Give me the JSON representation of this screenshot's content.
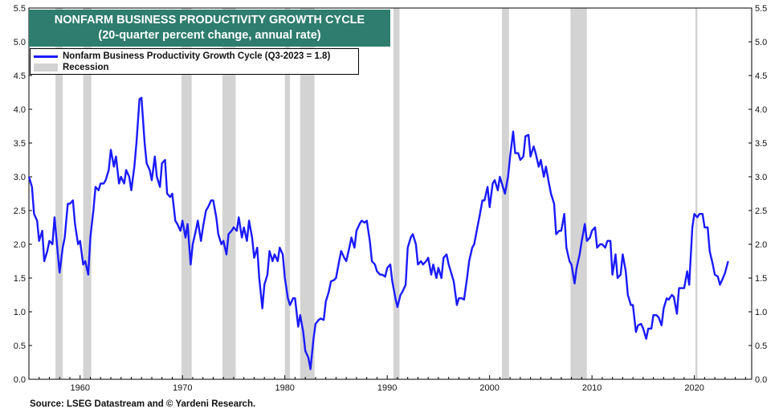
{
  "title_line1": "NONFARM BUSINESS PRODUCTIVITY GROWTH CYCLE",
  "title_line2": "(20-quarter percent change, annual rate)",
  "legend": {
    "series_label": "Nonfarm Business Productivity Growth Cycle (Q3-2023 = 1.8)",
    "recession_label": "Recession"
  },
  "source": "Source: LSEG Datastream and © Yardeni Research.",
  "colors": {
    "line": "#1a1aff",
    "recession": "#d3d3d3",
    "title_bg": "#2e7d6f"
  },
  "chart_data": {
    "type": "line",
    "title": "NONFARM BUSINESS PRODUCTIVITY GROWTH CYCLE",
    "subtitle": "(20-quarter percent change, annual rate)",
    "xlim": [
      1955,
      2025.6
    ],
    "ylim": [
      0.0,
      5.5
    ],
    "x_ticks": [
      1960,
      1970,
      1980,
      1990,
      2000,
      2010,
      2020
    ],
    "y_ticks": [
      0.0,
      0.5,
      1.0,
      1.5,
      2.0,
      2.5,
      3.0,
      3.5,
      4.0,
      4.5,
      5.0,
      5.5
    ],
    "y_tick_labels": [
      "0.0",
      "0.5",
      "1.0",
      "1.5",
      "2.0",
      "2.5",
      "3.0",
      "3.5",
      "4.0",
      "4.5",
      "5.0",
      "5.5"
    ],
    "recessions": [
      [
        1957.6,
        1958.3
      ],
      [
        1960.3,
        1961.1
      ],
      [
        1969.9,
        1970.9
      ],
      [
        1973.9,
        1975.2
      ],
      [
        1980.0,
        1980.5
      ],
      [
        1981.5,
        1982.9
      ],
      [
        1990.6,
        1991.2
      ],
      [
        2001.2,
        2001.9
      ],
      [
        2007.9,
        2009.5
      ],
      [
        2020.1,
        2020.3
      ]
    ],
    "grid": false,
    "series": [
      {
        "name": "Nonfarm Business Productivity Growth Cycle (Q3-2023 = 1.8)",
        "points": [
          [
            1955.0,
            3.0
          ],
          [
            1955.3,
            2.85
          ],
          [
            1955.5,
            2.45
          ],
          [
            1955.8,
            2.35
          ],
          [
            1956.0,
            2.05
          ],
          [
            1956.3,
            2.2
          ],
          [
            1956.5,
            1.75
          ],
          [
            1956.8,
            1.9
          ],
          [
            1957.0,
            2.05
          ],
          [
            1957.3,
            2.0
          ],
          [
            1957.5,
            2.4
          ],
          [
            1957.8,
            1.9
          ],
          [
            1958.0,
            1.58
          ],
          [
            1958.3,
            1.95
          ],
          [
            1958.5,
            2.1
          ],
          [
            1958.8,
            2.6
          ],
          [
            1959.0,
            2.6
          ],
          [
            1959.3,
            2.65
          ],
          [
            1959.5,
            2.3
          ],
          [
            1959.8,
            2.0
          ],
          [
            1960.0,
            2.05
          ],
          [
            1960.3,
            1.7
          ],
          [
            1960.5,
            1.75
          ],
          [
            1960.8,
            1.55
          ],
          [
            1961.0,
            2.1
          ],
          [
            1961.3,
            2.5
          ],
          [
            1961.5,
            2.85
          ],
          [
            1961.8,
            2.8
          ],
          [
            1962.0,
            2.9
          ],
          [
            1962.3,
            2.9
          ],
          [
            1962.5,
            2.95
          ],
          [
            1962.8,
            3.1
          ],
          [
            1963.0,
            3.4
          ],
          [
            1963.3,
            3.15
          ],
          [
            1963.5,
            3.3
          ],
          [
            1963.8,
            2.9
          ],
          [
            1964.0,
            3.0
          ],
          [
            1964.3,
            2.9
          ],
          [
            1964.5,
            3.1
          ],
          [
            1964.8,
            3.0
          ],
          [
            1965.0,
            2.8
          ],
          [
            1965.3,
            3.15
          ],
          [
            1965.5,
            3.5
          ],
          [
            1965.8,
            4.15
          ],
          [
            1966.0,
            4.17
          ],
          [
            1966.3,
            3.5
          ],
          [
            1966.5,
            3.2
          ],
          [
            1966.8,
            3.1
          ],
          [
            1967.0,
            2.95
          ],
          [
            1967.3,
            3.3
          ],
          [
            1967.5,
            3.0
          ],
          [
            1967.8,
            2.85
          ],
          [
            1968.0,
            3.2
          ],
          [
            1968.3,
            3.25
          ],
          [
            1968.5,
            2.75
          ],
          [
            1968.8,
            2.7
          ],
          [
            1969.0,
            2.75
          ],
          [
            1969.3,
            2.35
          ],
          [
            1969.5,
            2.3
          ],
          [
            1969.8,
            2.2
          ],
          [
            1970.0,
            2.35
          ],
          [
            1970.3,
            2.1
          ],
          [
            1970.5,
            2.3
          ],
          [
            1970.8,
            1.7
          ],
          [
            1971.0,
            2.0
          ],
          [
            1971.3,
            2.2
          ],
          [
            1971.5,
            2.35
          ],
          [
            1971.8,
            2.05
          ],
          [
            1972.0,
            2.25
          ],
          [
            1972.3,
            2.5
          ],
          [
            1972.5,
            2.55
          ],
          [
            1972.8,
            2.65
          ],
          [
            1973.0,
            2.65
          ],
          [
            1973.3,
            2.4
          ],
          [
            1973.5,
            2.15
          ],
          [
            1973.8,
            2.0
          ],
          [
            1974.0,
            2.05
          ],
          [
            1974.3,
            1.85
          ],
          [
            1974.5,
            2.15
          ],
          [
            1974.8,
            2.2
          ],
          [
            1975.0,
            2.25
          ],
          [
            1975.3,
            2.2
          ],
          [
            1975.5,
            2.4
          ],
          [
            1975.8,
            2.1
          ],
          [
            1976.0,
            2.25
          ],
          [
            1976.3,
            2.05
          ],
          [
            1976.5,
            2.35
          ],
          [
            1976.8,
            2.1
          ],
          [
            1977.0,
            1.8
          ],
          [
            1977.3,
            1.95
          ],
          [
            1977.5,
            1.5
          ],
          [
            1977.8,
            1.05
          ],
          [
            1978.0,
            1.4
          ],
          [
            1978.3,
            1.55
          ],
          [
            1978.5,
            1.9
          ],
          [
            1978.8,
            1.75
          ],
          [
            1979.0,
            1.85
          ],
          [
            1979.3,
            1.75
          ],
          [
            1979.5,
            1.95
          ],
          [
            1979.8,
            1.85
          ],
          [
            1980.0,
            1.5
          ],
          [
            1980.3,
            1.2
          ],
          [
            1980.5,
            1.1
          ],
          [
            1980.8,
            1.2
          ],
          [
            1981.0,
            1.2
          ],
          [
            1981.3,
            0.78
          ],
          [
            1981.5,
            0.95
          ],
          [
            1981.8,
            0.7
          ],
          [
            1982.0,
            0.42
          ],
          [
            1982.3,
            0.32
          ],
          [
            1982.5,
            0.15
          ],
          [
            1982.8,
            0.6
          ],
          [
            1983.0,
            0.82
          ],
          [
            1983.3,
            0.88
          ],
          [
            1983.5,
            0.9
          ],
          [
            1983.8,
            0.88
          ],
          [
            1984.0,
            1.15
          ],
          [
            1984.3,
            1.3
          ],
          [
            1984.5,
            1.45
          ],
          [
            1984.8,
            1.47
          ],
          [
            1985.0,
            1.5
          ],
          [
            1985.3,
            1.75
          ],
          [
            1985.5,
            1.9
          ],
          [
            1985.8,
            1.8
          ],
          [
            1986.0,
            1.75
          ],
          [
            1986.3,
            1.95
          ],
          [
            1986.5,
            2.1
          ],
          [
            1986.8,
            1.95
          ],
          [
            1987.0,
            2.2
          ],
          [
            1987.3,
            2.3
          ],
          [
            1987.5,
            2.35
          ],
          [
            1987.8,
            2.32
          ],
          [
            1988.0,
            2.35
          ],
          [
            1988.3,
            2.05
          ],
          [
            1988.5,
            1.75
          ],
          [
            1988.8,
            1.7
          ],
          [
            1989.0,
            1.6
          ],
          [
            1989.3,
            1.55
          ],
          [
            1989.5,
            1.55
          ],
          [
            1989.8,
            1.52
          ],
          [
            1990.0,
            1.65
          ],
          [
            1990.3,
            1.7
          ],
          [
            1990.5,
            1.45
          ],
          [
            1990.8,
            1.2
          ],
          [
            1991.0,
            1.07
          ],
          [
            1991.3,
            1.25
          ],
          [
            1991.5,
            1.3
          ],
          [
            1991.8,
            1.4
          ],
          [
            1992.0,
            1.95
          ],
          [
            1992.3,
            2.1
          ],
          [
            1992.5,
            2.15
          ],
          [
            1992.8,
            2.0
          ],
          [
            1993.0,
            1.7
          ],
          [
            1993.3,
            1.75
          ],
          [
            1993.5,
            1.7
          ],
          [
            1993.8,
            1.75
          ],
          [
            1994.0,
            1.8
          ],
          [
            1994.3,
            1.55
          ],
          [
            1994.5,
            1.7
          ],
          [
            1994.8,
            1.5
          ],
          [
            1995.0,
            1.65
          ],
          [
            1995.3,
            1.5
          ],
          [
            1995.5,
            1.8
          ],
          [
            1995.8,
            1.85
          ],
          [
            1996.0,
            1.7
          ],
          [
            1996.3,
            1.55
          ],
          [
            1996.5,
            1.45
          ],
          [
            1996.8,
            1.1
          ],
          [
            1997.0,
            1.2
          ],
          [
            1997.3,
            1.2
          ],
          [
            1997.5,
            1.18
          ],
          [
            1997.8,
            1.5
          ],
          [
            1998.0,
            1.75
          ],
          [
            1998.3,
            1.95
          ],
          [
            1998.5,
            2.0
          ],
          [
            1998.8,
            2.25
          ],
          [
            1999.0,
            2.4
          ],
          [
            1999.3,
            2.65
          ],
          [
            1999.5,
            2.65
          ],
          [
            1999.8,
            2.85
          ],
          [
            2000.0,
            2.55
          ],
          [
            2000.3,
            2.9
          ],
          [
            2000.5,
            2.95
          ],
          [
            2000.8,
            2.8
          ],
          [
            2001.0,
            3.0
          ],
          [
            2001.3,
            2.85
          ],
          [
            2001.5,
            2.75
          ],
          [
            2001.8,
            3.0
          ],
          [
            2002.0,
            3.3
          ],
          [
            2002.3,
            3.67
          ],
          [
            2002.5,
            3.35
          ],
          [
            2002.8,
            3.35
          ],
          [
            2003.0,
            3.25
          ],
          [
            2003.3,
            3.3
          ],
          [
            2003.5,
            3.6
          ],
          [
            2003.8,
            3.62
          ],
          [
            2004.0,
            3.3
          ],
          [
            2004.3,
            3.45
          ],
          [
            2004.5,
            3.35
          ],
          [
            2004.8,
            3.15
          ],
          [
            2005.0,
            3.25
          ],
          [
            2005.3,
            3.0
          ],
          [
            2005.5,
            3.15
          ],
          [
            2005.8,
            2.9
          ],
          [
            2006.0,
            2.75
          ],
          [
            2006.3,
            2.6
          ],
          [
            2006.5,
            2.15
          ],
          [
            2006.8,
            2.2
          ],
          [
            2007.0,
            2.2
          ],
          [
            2007.3,
            2.45
          ],
          [
            2007.5,
            1.95
          ],
          [
            2007.8,
            1.75
          ],
          [
            2008.0,
            1.7
          ],
          [
            2008.3,
            1.42
          ],
          [
            2008.5,
            1.65
          ],
          [
            2008.8,
            1.85
          ],
          [
            2009.0,
            2.05
          ],
          [
            2009.3,
            2.3
          ],
          [
            2009.5,
            2.05
          ],
          [
            2009.8,
            2.1
          ],
          [
            2010.0,
            2.2
          ],
          [
            2010.3,
            2.25
          ],
          [
            2010.5,
            1.95
          ],
          [
            2010.8,
            2.0
          ],
          [
            2011.0,
            2.0
          ],
          [
            2011.3,
            1.95
          ],
          [
            2011.5,
            2.05
          ],
          [
            2011.8,
            2.05
          ],
          [
            2012.0,
            1.55
          ],
          [
            2012.3,
            1.85
          ],
          [
            2012.5,
            1.5
          ],
          [
            2012.8,
            1.55
          ],
          [
            2013.0,
            1.85
          ],
          [
            2013.3,
            1.6
          ],
          [
            2013.5,
            1.25
          ],
          [
            2013.8,
            1.1
          ],
          [
            2014.0,
            1.1
          ],
          [
            2014.3,
            0.7
          ],
          [
            2014.5,
            0.8
          ],
          [
            2014.8,
            0.82
          ],
          [
            2015.0,
            0.75
          ],
          [
            2015.3,
            0.6
          ],
          [
            2015.5,
            0.75
          ],
          [
            2015.8,
            0.75
          ],
          [
            2016.0,
            0.95
          ],
          [
            2016.3,
            0.95
          ],
          [
            2016.5,
            0.92
          ],
          [
            2016.8,
            0.8
          ],
          [
            2017.0,
            1.05
          ],
          [
            2017.3,
            1.2
          ],
          [
            2017.5,
            1.18
          ],
          [
            2017.8,
            1.25
          ],
          [
            2018.0,
            1.22
          ],
          [
            2018.3,
            0.97
          ],
          [
            2018.5,
            1.35
          ],
          [
            2018.8,
            1.35
          ],
          [
            2019.0,
            1.35
          ],
          [
            2019.3,
            1.6
          ],
          [
            2019.5,
            1.4
          ],
          [
            2019.8,
            2.25
          ],
          [
            2020.0,
            2.45
          ],
          [
            2020.3,
            2.4
          ],
          [
            2020.5,
            2.45
          ],
          [
            2020.8,
            2.45
          ],
          [
            2021.0,
            2.25
          ],
          [
            2021.3,
            2.25
          ],
          [
            2021.5,
            1.9
          ],
          [
            2021.8,
            1.7
          ],
          [
            2022.0,
            1.55
          ],
          [
            2022.3,
            1.52
          ],
          [
            2022.5,
            1.4
          ],
          [
            2022.8,
            1.5
          ],
          [
            2023.0,
            1.58
          ],
          [
            2023.3,
            1.75
          ]
        ]
      }
    ]
  }
}
